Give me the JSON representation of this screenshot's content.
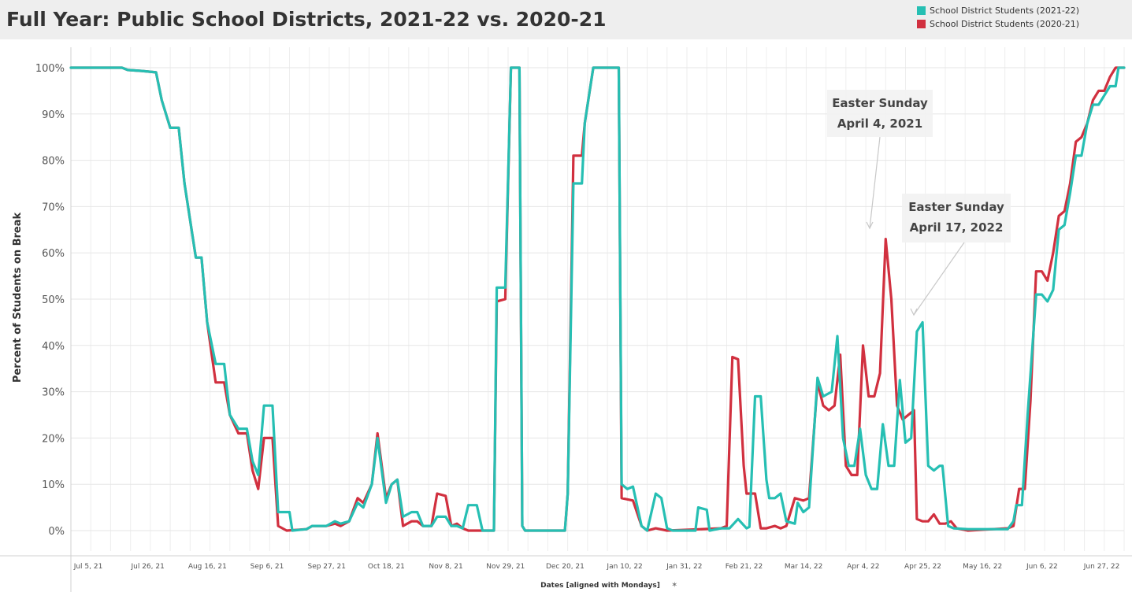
{
  "colors": {
    "series_2021_22": "#26bfb3",
    "series_2020_21": "#d1303f",
    "header_bg": "#eeeeee",
    "grid": "#ececec"
  },
  "chart_data": {
    "type": "line",
    "title": "Full Year: Public School Districts, 2021-22 vs. 2020-21",
    "xlabel": "Dates [aligned with Mondays]",
    "ylabel": "Percent of Students on Break",
    "x_unit": "days since Jul 5, 21",
    "xlim": [
      0,
      361
    ],
    "ylim": [
      0,
      100
    ],
    "yticks": [
      0,
      10,
      20,
      30,
      40,
      50,
      60,
      70,
      80,
      90,
      100
    ],
    "ytick_labels": [
      "0%",
      "10%",
      "20%",
      "30%",
      "40%",
      "50%",
      "60%",
      "70%",
      "80%",
      "90%",
      "100%"
    ],
    "x_tick_values": [
      0,
      21,
      42,
      63,
      84,
      105,
      126,
      147,
      168,
      189,
      210,
      231,
      252,
      273,
      294,
      315,
      336,
      357
    ],
    "x_tick_labels": [
      "Jul 5, 21",
      "Jul 26, 21",
      "Aug 16, 21",
      "Sep 6, 21",
      "Sep 27, 21",
      "Oct 18, 21",
      "Nov 8, 21",
      "Nov 29, 21",
      "Dec 20, 21",
      "Jan 10, 22",
      "Jan 31, 22",
      "Feb 21, 22",
      "Mar 14, 22",
      "Apr 4, 22",
      "Apr 25, 22",
      "May 16, 22",
      "Jun 6, 22",
      "Jun 27, 22"
    ],
    "legend_position": "top-right",
    "grid": true,
    "series": [
      {
        "name": "School District Students (2021-22)",
        "color": "#26bfb3",
        "points": [
          [
            0,
            100
          ],
          [
            18,
            100
          ],
          [
            20,
            99.5
          ],
          [
            25,
            99.3
          ],
          [
            30,
            99
          ],
          [
            32,
            93
          ],
          [
            35,
            87
          ],
          [
            38,
            87
          ],
          [
            40,
            75
          ],
          [
            44,
            59
          ],
          [
            46,
            59
          ],
          [
            48,
            45
          ],
          [
            51,
            36
          ],
          [
            54,
            36
          ],
          [
            56,
            25
          ],
          [
            59,
            22
          ],
          [
            62,
            22
          ],
          [
            64,
            15
          ],
          [
            66,
            12
          ],
          [
            68,
            27
          ],
          [
            71,
            27
          ],
          [
            73,
            4
          ],
          [
            77,
            4
          ],
          [
            78,
            0
          ],
          [
            83,
            0.3
          ],
          [
            85,
            1
          ],
          [
            90,
            1
          ],
          [
            93,
            2
          ],
          [
            95,
            1.5
          ],
          [
            98,
            2
          ],
          [
            101,
            6
          ],
          [
            103,
            5
          ],
          [
            106,
            10
          ],
          [
            108,
            20
          ],
          [
            111,
            6
          ],
          [
            113,
            10
          ],
          [
            115,
            11
          ],
          [
            117,
            3
          ],
          [
            120,
            4
          ],
          [
            122,
            4
          ],
          [
            124,
            1
          ],
          [
            127,
            1
          ],
          [
            129,
            3
          ],
          [
            132,
            3
          ],
          [
            134,
            1
          ],
          [
            136,
            1
          ],
          [
            138,
            0.5
          ],
          [
            140,
            5.5
          ],
          [
            143,
            5.5
          ],
          [
            145,
            0
          ],
          [
            149,
            0
          ],
          [
            150,
            52.5
          ],
          [
            153,
            52.5
          ],
          [
            155,
            100
          ],
          [
            158,
            100
          ],
          [
            159,
            1
          ],
          [
            160,
            0
          ],
          [
            174,
            0
          ],
          [
            175,
            8
          ],
          [
            177,
            75
          ],
          [
            180,
            75
          ],
          [
            181,
            88
          ],
          [
            184,
            100
          ],
          [
            193,
            100
          ],
          [
            194,
            10
          ],
          [
            196,
            9
          ],
          [
            198,
            9.5
          ],
          [
            201,
            1
          ],
          [
            203,
            0
          ],
          [
            206,
            8
          ],
          [
            208,
            7
          ],
          [
            210,
            0.5
          ],
          [
            212,
            0
          ],
          [
            220,
            0
          ],
          [
            221,
            5
          ],
          [
            224,
            4.5
          ],
          [
            225,
            0
          ],
          [
            229,
            0.5
          ],
          [
            232,
            0.5
          ],
          [
            235,
            2.5
          ],
          [
            238,
            0.5
          ],
          [
            239,
            0.8
          ],
          [
            241,
            29
          ],
          [
            243,
            29
          ],
          [
            245,
            11
          ],
          [
            246,
            7
          ],
          [
            248,
            7
          ],
          [
            250,
            8
          ],
          [
            252,
            2
          ],
          [
            255,
            1.5
          ],
          [
            256,
            6
          ],
          [
            258,
            4
          ],
          [
            260,
            5
          ],
          [
            263,
            33
          ],
          [
            265,
            29
          ],
          [
            268,
            30
          ],
          [
            270,
            42
          ],
          [
            272,
            20
          ],
          [
            274,
            14
          ],
          [
            276,
            14
          ],
          [
            278,
            22
          ],
          [
            280,
            12
          ],
          [
            282,
            9
          ],
          [
            284,
            9
          ],
          [
            286,
            23
          ],
          [
            288,
            14
          ],
          [
            290,
            14
          ],
          [
            292,
            32.5
          ],
          [
            294,
            19
          ],
          [
            296,
            20
          ],
          [
            298,
            43
          ],
          [
            300,
            45
          ],
          [
            302,
            14
          ],
          [
            304,
            13
          ],
          [
            306,
            14
          ],
          [
            307,
            14
          ],
          [
            309,
            1
          ],
          [
            311,
            0.5
          ],
          [
            316,
            0.3
          ],
          [
            330,
            0.3
          ],
          [
            332,
            2
          ],
          [
            333,
            5.5
          ],
          [
            335,
            5.5
          ],
          [
            337,
            25
          ],
          [
            340,
            51
          ],
          [
            342,
            51
          ],
          [
            344,
            49.5
          ],
          [
            346,
            52
          ],
          [
            348,
            65
          ],
          [
            350,
            66
          ],
          [
            352,
            73
          ],
          [
            354,
            81
          ],
          [
            356,
            81
          ],
          [
            358,
            88
          ],
          [
            360,
            92
          ],
          [
            362,
            92
          ],
          [
            364,
            94
          ],
          [
            366,
            96
          ],
          [
            368,
            96
          ],
          [
            369,
            100
          ],
          [
            371,
            100
          ]
        ]
      },
      {
        "name": "School District Students (2020-21)",
        "color": "#d1303f",
        "points": [
          [
            0,
            100
          ],
          [
            18,
            100
          ],
          [
            20,
            99.5
          ],
          [
            25,
            99.3
          ],
          [
            30,
            99
          ],
          [
            32,
            93
          ],
          [
            35,
            87
          ],
          [
            38,
            87
          ],
          [
            40,
            75
          ],
          [
            44,
            59
          ],
          [
            46,
            59
          ],
          [
            48,
            45
          ],
          [
            51,
            32
          ],
          [
            54,
            32
          ],
          [
            56,
            25
          ],
          [
            59,
            21
          ],
          [
            62,
            21
          ],
          [
            64,
            13
          ],
          [
            66,
            9
          ],
          [
            68,
            20
          ],
          [
            71,
            20
          ],
          [
            73,
            1
          ],
          [
            76,
            0
          ],
          [
            83,
            0.3
          ],
          [
            85,
            1
          ],
          [
            90,
            1
          ],
          [
            93,
            1.5
          ],
          [
            95,
            1
          ],
          [
            98,
            2
          ],
          [
            101,
            7
          ],
          [
            103,
            6
          ],
          [
            106,
            10
          ],
          [
            108,
            21
          ],
          [
            111,
            7
          ],
          [
            113,
            10
          ],
          [
            115,
            11
          ],
          [
            117,
            1
          ],
          [
            120,
            2
          ],
          [
            122,
            2
          ],
          [
            124,
            1
          ],
          [
            127,
            1
          ],
          [
            129,
            8
          ],
          [
            132,
            7.5
          ],
          [
            134,
            1
          ],
          [
            136,
            1.5
          ],
          [
            138,
            0.5
          ],
          [
            140,
            0
          ],
          [
            145,
            0
          ],
          [
            149,
            0
          ],
          [
            150,
            49.5
          ],
          [
            153,
            50
          ],
          [
            155,
            100
          ],
          [
            158,
            100
          ],
          [
            159,
            1
          ],
          [
            160,
            0
          ],
          [
            174,
            0
          ],
          [
            175,
            8
          ],
          [
            177,
            81
          ],
          [
            180,
            81
          ],
          [
            181,
            88
          ],
          [
            184,
            100
          ],
          [
            193,
            100
          ],
          [
            194,
            7
          ],
          [
            198,
            6.5
          ],
          [
            201,
            1
          ],
          [
            203,
            0
          ],
          [
            206,
            0.5
          ],
          [
            210,
            0
          ],
          [
            229,
            0.5
          ],
          [
            231,
            1
          ],
          [
            233,
            37.5
          ],
          [
            235,
            37
          ],
          [
            237,
            14
          ],
          [
            238,
            8
          ],
          [
            241,
            8
          ],
          [
            243,
            0.5
          ],
          [
            245,
            0.5
          ],
          [
            248,
            1
          ],
          [
            250,
            0.5
          ],
          [
            252,
            1
          ],
          [
            255,
            7
          ],
          [
            258,
            6.5
          ],
          [
            260,
            7
          ],
          [
            263,
            32
          ],
          [
            265,
            27
          ],
          [
            267,
            26
          ],
          [
            269,
            27
          ],
          [
            271,
            38
          ],
          [
            273,
            14
          ],
          [
            275,
            12
          ],
          [
            277,
            12
          ],
          [
            279,
            40
          ],
          [
            281,
            29
          ],
          [
            283,
            29
          ],
          [
            285,
            34
          ],
          [
            287,
            63
          ],
          [
            289,
            50
          ],
          [
            291,
            27
          ],
          [
            293,
            24
          ],
          [
            295,
            25
          ],
          [
            297,
            26
          ],
          [
            298,
            2.5
          ],
          [
            300,
            2
          ],
          [
            302,
            2
          ],
          [
            304,
            3.5
          ],
          [
            306,
            1.5
          ],
          [
            308,
            1.5
          ],
          [
            310,
            2
          ],
          [
            312,
            0.5
          ],
          [
            316,
            0
          ],
          [
            330,
            0.5
          ],
          [
            332,
            1
          ],
          [
            334,
            9
          ],
          [
            336,
            9
          ],
          [
            338,
            28
          ],
          [
            340,
            56
          ],
          [
            342,
            56
          ],
          [
            344,
            54
          ],
          [
            346,
            60
          ],
          [
            348,
            68
          ],
          [
            350,
            69
          ],
          [
            352,
            75
          ],
          [
            354,
            84
          ],
          [
            356,
            85
          ],
          [
            358,
            88
          ],
          [
            360,
            93
          ],
          [
            362,
            95
          ],
          [
            364,
            95
          ],
          [
            366,
            98
          ],
          [
            368,
            100
          ],
          [
            371,
            100
          ]
        ]
      }
    ],
    "annotations": [
      {
        "lines": [
          "Easter Sunday",
          "April 4, 2021"
        ],
        "x": 287,
        "y": 63
      },
      {
        "lines": [
          "Easter Sunday",
          "April 17, 2022"
        ],
        "x": 300,
        "y": 45
      }
    ]
  }
}
